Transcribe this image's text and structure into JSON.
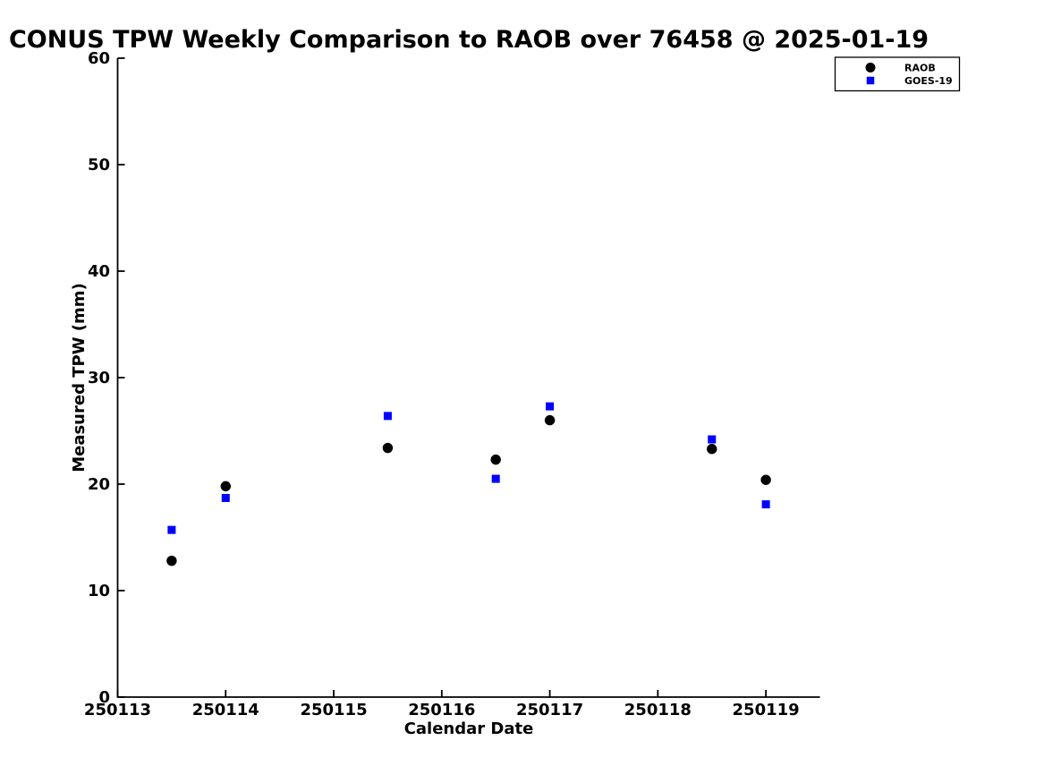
{
  "chart_data": {
    "type": "scatter",
    "title": "CONUS TPW Weekly Comparison to RAOB over 76458 @ 2025-01-19",
    "xlabel": "Calendar Date",
    "ylabel": "Measured TPW (mm)",
    "xlim": [
      250113,
      250119.5
    ],
    "ylim": [
      0,
      60
    ],
    "xtick_values": [
      250113,
      250114,
      250115,
      250116,
      250117,
      250118,
      250119
    ],
    "xtick_labels": [
      "250113",
      "250114",
      "250115",
      "250116",
      "250117",
      "250118",
      "250119"
    ],
    "ytick_values": [
      0,
      10,
      20,
      30,
      40,
      50,
      60
    ],
    "ytick_labels": [
      "0",
      "10",
      "20",
      "30",
      "40",
      "50",
      "60"
    ],
    "grid": false,
    "legend_position": "top-right",
    "axis_color": "#000000",
    "background_color": "#ffffff",
    "series": [
      {
        "name": "RAOB",
        "marker": "circle",
        "color": "#000000",
        "x": [
          250113.5,
          250114.0,
          250115.5,
          250116.5,
          250117.0,
          250118.5,
          250119.0
        ],
        "y": [
          12.8,
          19.8,
          23.4,
          22.3,
          26.0,
          23.3,
          20.4
        ]
      },
      {
        "name": "GOES-19",
        "marker": "square",
        "color": "#0000ff",
        "x": [
          250113.5,
          250114.0,
          250115.5,
          250116.5,
          250117.0,
          250118.5,
          250119.0
        ],
        "y": [
          15.7,
          18.7,
          26.4,
          20.5,
          27.3,
          24.2,
          18.1
        ]
      }
    ]
  }
}
